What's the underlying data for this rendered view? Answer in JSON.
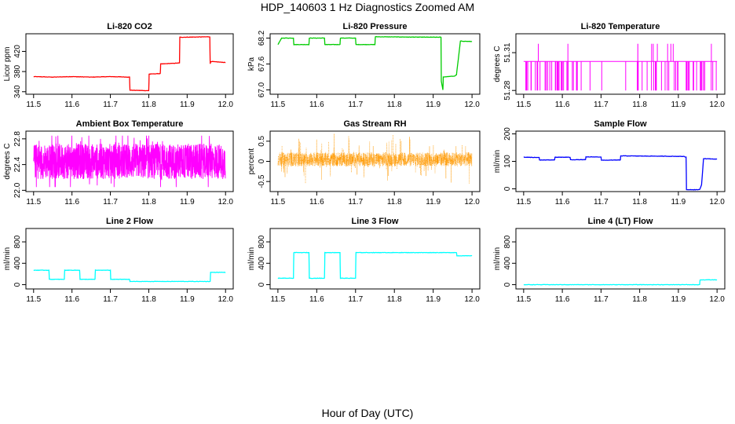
{
  "figure_title": "HDP_140603  1 Hz Diagnostics Zoomed AM",
  "x_axis_label": "Hour of Day (UTC)",
  "chart_data": [
    {
      "type": "line",
      "title": "Li-820 CO2",
      "ylabel": "Licor ppm",
      "color": "#ff0000",
      "xlim": [
        11.48,
        12.02
      ],
      "ylim": [
        335,
        455
      ],
      "xticks": [
        "11.5",
        "11.6",
        "11.7",
        "11.8",
        "11.9",
        "12.0"
      ],
      "yticks": [
        "340",
        "380",
        "420"
      ],
      "x": [
        11.5,
        11.55,
        11.6,
        11.65,
        11.7,
        11.75,
        11.751,
        11.8,
        11.801,
        11.83,
        11.831,
        11.88,
        11.881,
        11.959,
        11.96,
        11.961,
        12.0
      ],
      "y": [
        370,
        369,
        370,
        369,
        370,
        369,
        343,
        342,
        375,
        376,
        395,
        397,
        448,
        449,
        395,
        400,
        398
      ]
    },
    {
      "type": "line",
      "title": "Li-820 Pressure",
      "ylabel": "kPa",
      "color": "#00cc00",
      "xlim": [
        11.48,
        12.02
      ],
      "ylim": [
        66.9,
        68.3
      ],
      "xticks": [
        "11.5",
        "11.6",
        "11.7",
        "11.8",
        "11.9",
        "12.0"
      ],
      "yticks": [
        "67.0",
        "67.6",
        "68.2"
      ],
      "x": [
        11.5,
        11.51,
        11.54,
        11.541,
        11.58,
        11.581,
        11.62,
        11.621,
        11.66,
        11.661,
        11.7,
        11.701,
        11.75,
        11.751,
        11.9,
        11.92,
        11.921,
        11.925,
        11.926,
        11.955,
        11.96,
        11.97,
        12.0
      ],
      "y": [
        68.05,
        68.2,
        68.2,
        68.05,
        68.05,
        68.2,
        68.2,
        68.05,
        68.05,
        68.2,
        68.2,
        68.05,
        68.05,
        68.23,
        68.22,
        68.22,
        67.2,
        67.0,
        67.3,
        67.32,
        67.35,
        68.13,
        68.12
      ]
    },
    {
      "type": "line",
      "title": "Li-820 Temperature",
      "ylabel": "degrees C",
      "color": "#ff00ff",
      "xlim": [
        11.48,
        12.02
      ],
      "ylim": [
        51.277,
        51.325
      ],
      "xticks": [
        "11.5",
        "11.6",
        "11.7",
        "11.8",
        "11.9",
        "12.0"
      ],
      "yticks": [
        "51.28",
        "51.31"
      ],
      "base": 51.303,
      "low": 51.28,
      "high": 51.317
    },
    {
      "type": "line",
      "title": "Ambient Box Temperature",
      "ylabel": "degrees C",
      "color": "#ff00ff",
      "xlim": [
        11.48,
        12.02
      ],
      "ylim": [
        21.98,
        22.92
      ],
      "xticks": [
        "11.5",
        "11.6",
        "11.7",
        "11.8",
        "11.9",
        "12.0"
      ],
      "yticks": [
        "22.0",
        "22.4",
        "22.8"
      ],
      "mean": 22.45,
      "range": [
        22.05,
        22.85
      ]
    },
    {
      "type": "scatter",
      "title": "Gas Stream RH",
      "ylabel": "percent",
      "color": "#ff9900",
      "xlim": [
        11.48,
        12.02
      ],
      "ylim": [
        -0.75,
        0.75
      ],
      "xticks": [
        "11.5",
        "11.6",
        "11.7",
        "11.8",
        "11.9",
        "12.0"
      ],
      "yticks": [
        "-0.5",
        "0",
        "0.5"
      ],
      "mean": 0.05,
      "range": [
        -0.7,
        0.8
      ]
    },
    {
      "type": "line",
      "title": "Sample Flow",
      "ylabel": "ml/min",
      "color": "#0000ff",
      "xlim": [
        11.48,
        12.02
      ],
      "ylim": [
        -10,
        210
      ],
      "xticks": [
        "11.5",
        "11.6",
        "11.7",
        "11.8",
        "11.9",
        "12.0"
      ],
      "yticks": [
        "0",
        "100",
        "200"
      ],
      "x": [
        11.5,
        11.54,
        11.541,
        11.58,
        11.581,
        11.62,
        11.621,
        11.66,
        11.661,
        11.7,
        11.701,
        11.75,
        11.751,
        11.915,
        11.92,
        11.921,
        11.955,
        11.96,
        11.965,
        12.0
      ],
      "y": [
        115,
        114,
        105,
        105,
        115,
        115,
        106,
        106,
        116,
        116,
        104,
        105,
        120,
        118,
        115,
        -3,
        -3,
        15,
        110,
        108
      ]
    },
    {
      "type": "line",
      "title": "Line 2 Flow",
      "ylabel": "ml/min",
      "color": "#00ffff",
      "xlim": [
        11.48,
        12.02
      ],
      "ylim": [
        -80,
        1050
      ],
      "xticks": [
        "11.5",
        "11.6",
        "11.7",
        "11.8",
        "11.9",
        "12.0"
      ],
      "yticks": [
        "0",
        "400",
        "800"
      ],
      "x": [
        11.5,
        11.54,
        11.541,
        11.58,
        11.581,
        11.62,
        11.621,
        11.66,
        11.661,
        11.7,
        11.701,
        11.75,
        11.751,
        11.96,
        11.961,
        12.0
      ],
      "y": [
        270,
        270,
        100,
        100,
        270,
        270,
        100,
        100,
        270,
        270,
        100,
        100,
        60,
        60,
        230,
        230
      ]
    },
    {
      "type": "line",
      "title": "Line 3 Flow",
      "ylabel": "ml/min",
      "color": "#00ffff",
      "xlim": [
        11.48,
        12.02
      ],
      "ylim": [
        -80,
        1050
      ],
      "xticks": [
        "11.5",
        "11.6",
        "11.7",
        "11.8",
        "11.9",
        "12.0"
      ],
      "yticks": [
        "0",
        "400",
        "800"
      ],
      "x": [
        11.5,
        11.54,
        11.541,
        11.58,
        11.581,
        11.62,
        11.621,
        11.66,
        11.661,
        11.7,
        11.701,
        11.96,
        11.961,
        12.0
      ],
      "y": [
        120,
        120,
        600,
        600,
        120,
        120,
        600,
        600,
        120,
        120,
        600,
        600,
        540,
        540
      ]
    },
    {
      "type": "line",
      "title": "Line 4 (LT) Flow",
      "ylabel": "ml/min",
      "color": "#00ffff",
      "xlim": [
        11.48,
        12.02
      ],
      "ylim": [
        -80,
        1050
      ],
      "xticks": [
        "11.5",
        "11.6",
        "11.7",
        "11.8",
        "11.9",
        "12.0"
      ],
      "yticks": [
        "0",
        "400",
        "800"
      ],
      "x": [
        11.5,
        11.955,
        11.956,
        12.0
      ],
      "y": [
        0,
        0,
        90,
        90
      ]
    }
  ]
}
